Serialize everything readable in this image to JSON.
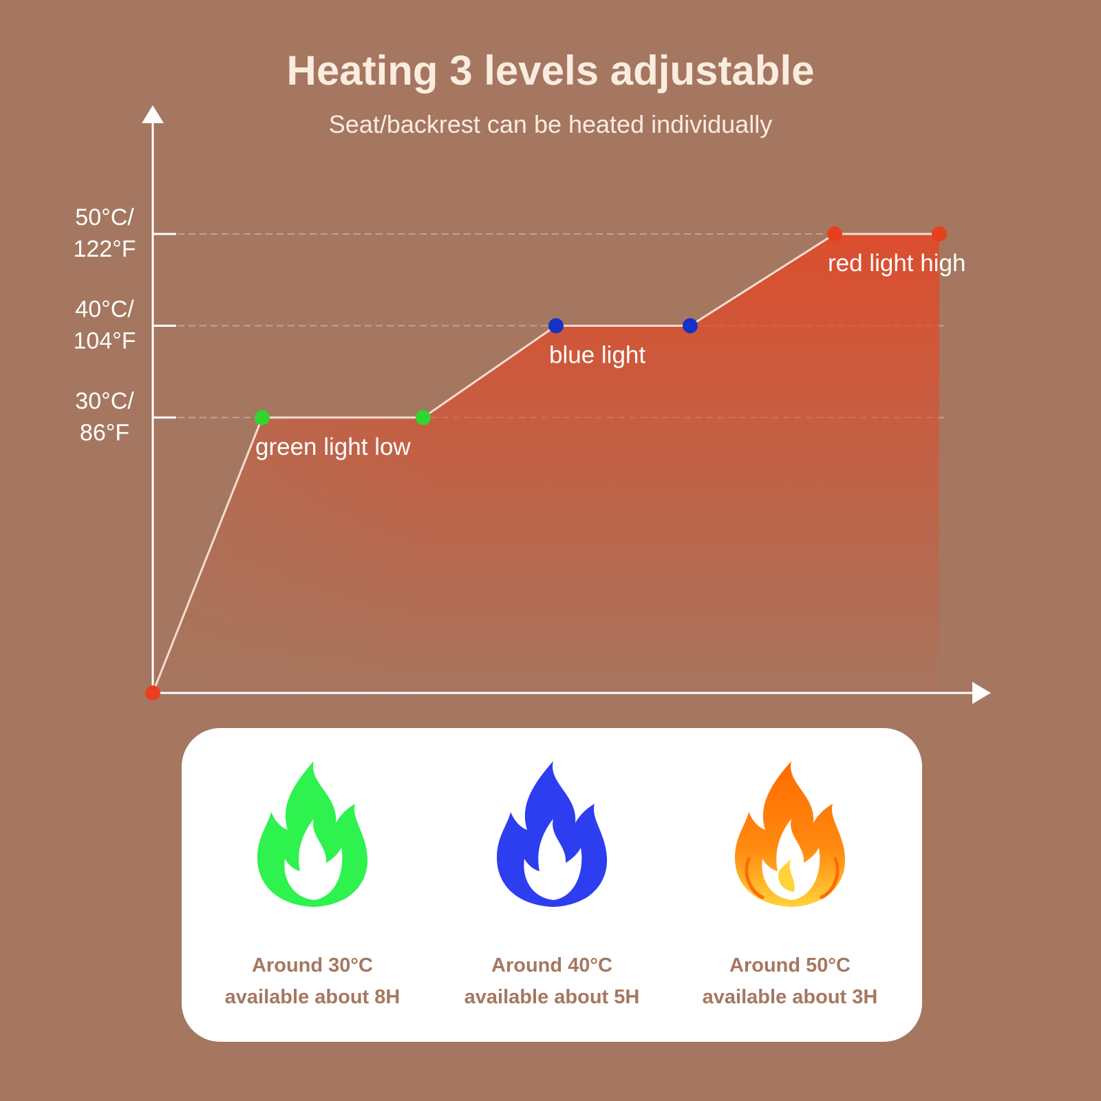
{
  "header": {
    "title": "Heating 3 levels adjustable",
    "subtitle": "Seat/backrest can be heated individually"
  },
  "chart_data": {
    "type": "line",
    "fill": "area",
    "grid": true,
    "ylim": [
      0,
      50
    ],
    "y_ticks": [
      {
        "value": 30,
        "line1": "30°C/",
        "line2": "86°F"
      },
      {
        "value": 40,
        "line1": "40°C/",
        "line2": "104°F"
      },
      {
        "value": 50,
        "line1": "50°C/",
        "line2": "122°F"
      }
    ],
    "points": [
      {
        "x": 0,
        "y": 0,
        "color": "#e8401f"
      },
      {
        "x": 1,
        "y": 30,
        "color": "#2fd62f"
      },
      {
        "x": 2,
        "y": 30,
        "color": "#2fd62f"
      },
      {
        "x": 3,
        "y": 40,
        "color": "#1432c8"
      },
      {
        "x": 4,
        "y": 40,
        "color": "#1432c8"
      },
      {
        "x": 5,
        "y": 50,
        "color": "#e8401f"
      },
      {
        "x": 6,
        "y": 50,
        "color": "#e8401f"
      }
    ],
    "annotations": [
      {
        "text": "green light low",
        "x": 1,
        "y": 30
      },
      {
        "text": "blue light",
        "x": 3,
        "y": 40
      },
      {
        "text": "red light high",
        "x": 5,
        "y": 50
      }
    ]
  },
  "levels": [
    {
      "icon": "flame-icon",
      "color": "#2ef24e",
      "line1": "Around 30°C",
      "line2": "available about 8H"
    },
    {
      "icon": "flame-icon",
      "color": "#2c3ef0",
      "line1": "Around 40°C",
      "line2": "available about 5H"
    },
    {
      "icon": "flame-icon",
      "color": "#ff6a00",
      "accent": "#ffd23a",
      "line1": "Around 50°C",
      "line2": "available about 3H"
    }
  ]
}
